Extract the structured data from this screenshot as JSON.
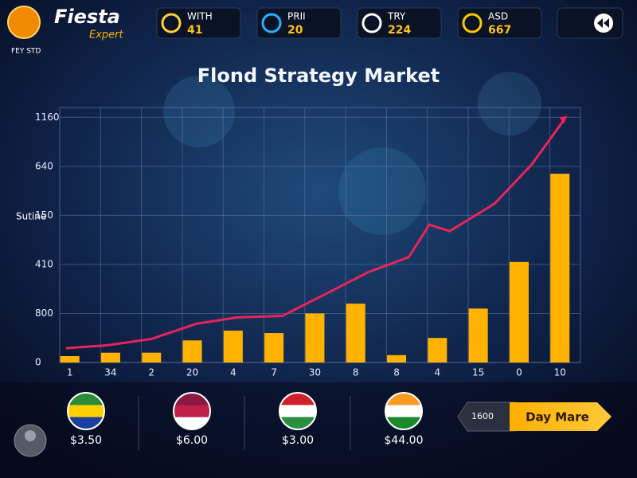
{
  "header": {
    "logo": "Fiesta",
    "logo_sub": "Expert",
    "tag": "FEY STD",
    "stats": [
      {
        "label": "WITH",
        "value": "41"
      },
      {
        "label": "PRII",
        "value": "20"
      },
      {
        "label": "TRY",
        "value": "224"
      },
      {
        "label": "ASD",
        "value": "667"
      }
    ]
  },
  "chart_data": {
    "type": "bar",
    "title": "Flond Strategy Market",
    "y_label": "Sutine",
    "categories": [
      "1",
      "34",
      "2",
      "20",
      "4",
      "7",
      "30",
      "8",
      "8",
      "4",
      "15",
      "0",
      "10"
    ],
    "values": [
      0.13,
      0.2,
      0.2,
      0.45,
      0.65,
      0.6,
      1.0,
      1.2,
      0.15,
      0.5,
      1.1,
      2.05,
      3.85
    ],
    "color": "#ffb300",
    "line": {
      "color": "#e8245a",
      "x": [
        -0.1,
        0.9,
        2,
        3.1,
        4.1,
        5.2,
        6.2,
        7.3,
        8.3,
        8.8,
        9.3,
        10.4,
        11.3,
        12.1
      ],
      "values": [
        0.29,
        0.35,
        0.48,
        0.79,
        0.92,
        0.95,
        1.37,
        1.84,
        2.15,
        2.81,
        2.68,
        3.24,
        4.03,
        4.95
      ]
    },
    "ylim": [
      0,
      5.2
    ],
    "yticks": [
      {
        "value": 0,
        "label": "0"
      },
      {
        "value": 1,
        "label": "800"
      },
      {
        "value": 2,
        "label": "410"
      },
      {
        "value": 3,
        "label": "150"
      },
      {
        "value": 4,
        "label": "640"
      },
      {
        "value": 5,
        "label": "1160"
      }
    ],
    "grid": true
  },
  "footer": {
    "prices": [
      "$3.50",
      "$6.00",
      "$3.00",
      "$44.00"
    ],
    "counter": "1600",
    "button": "Day Mare"
  }
}
